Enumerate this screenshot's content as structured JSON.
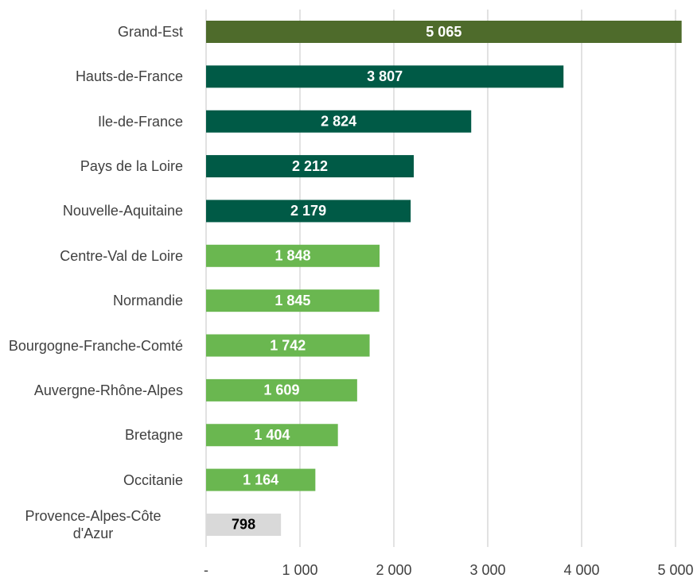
{
  "chart_data": {
    "type": "barh",
    "categories": [
      "Grand-Est",
      "Hauts-de-France",
      "Ile-de-France",
      "Pays de la Loire",
      "Nouvelle-Aquitaine",
      "Centre-Val de Loire",
      "Normandie",
      "Bourgogne-Franche-Comté",
      "Auvergne-Rhône-Alpes",
      "Bretagne",
      "Occitanie",
      "Provence-Alpes-Côte d'Azur"
    ],
    "values": [
      5065,
      3807,
      2824,
      2212,
      2179,
      1848,
      1845,
      1742,
      1609,
      1404,
      1164,
      798
    ],
    "value_labels": [
      "5 065",
      "3 807",
      "2 824",
      "2 212",
      "2 179",
      "1 848",
      "1 845",
      "1 742",
      "1 609",
      "1 404",
      "1 164",
      "798"
    ],
    "colors": [
      "#4e6b2b",
      "#005a46",
      "#005a46",
      "#005a46",
      "#005a46",
      "#6ab750",
      "#6ab750",
      "#6ab750",
      "#6ab750",
      "#6ab750",
      "#6ab750",
      "#d9d9d9"
    ],
    "value_label_colors": [
      "#ffffff",
      "#ffffff",
      "#ffffff",
      "#ffffff",
      "#ffffff",
      "#ffffff",
      "#ffffff",
      "#ffffff",
      "#ffffff",
      "#ffffff",
      "#ffffff",
      "#000000"
    ],
    "xlim": [
      0,
      5200
    ],
    "xticks": [
      {
        "value": 0,
        "label": "-"
      },
      {
        "value": 1000,
        "label": "1 000"
      },
      {
        "value": 2000,
        "label": "2 000"
      },
      {
        "value": 3000,
        "label": "3 000"
      },
      {
        "value": 4000,
        "label": "4 000"
      },
      {
        "value": 5000,
        "label": "5 000"
      }
    ],
    "grid": true
  }
}
